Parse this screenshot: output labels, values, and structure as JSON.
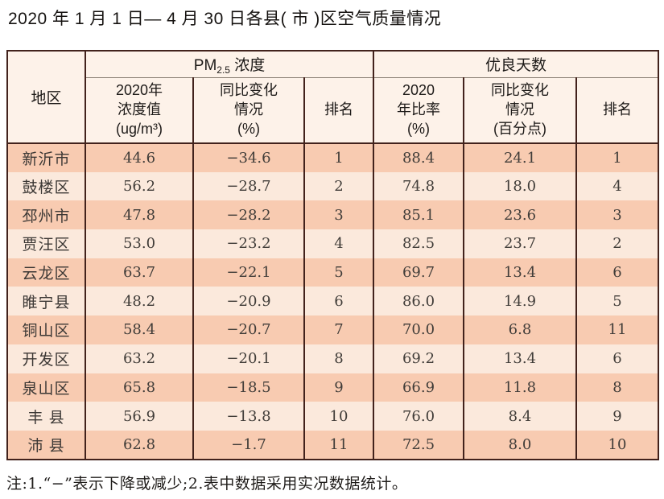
{
  "page": {
    "title": "2020 年 1 月 1 日— 4 月 30 日各县( 市 )区空气质量情况",
    "note": "注:1.“−”表示下降或减少;2.表中数据采用实况数据统计。"
  },
  "colors": {
    "border": "#42221c",
    "row_dark": "#f8cbb1",
    "row_light": "#fbe9dc",
    "header_bg": "#fdf2e9"
  },
  "table": {
    "region_header": "地区",
    "pm_group": {
      "prefix": "PM",
      "sub": "2.5",
      "suffix": " 浓度"
    },
    "good_group": "优良天数",
    "sub_headers": {
      "pm_value": "2020年\n浓度值\n(ug/m³)",
      "pm_change": "同比变化\n情况\n(%)",
      "pm_rank": "排名",
      "good_ratio": "2020\n年比率\n(%)",
      "good_change": "同比变化\n情况\n(百分点)",
      "good_rank": "排名"
    },
    "rows": [
      {
        "region": "新沂市",
        "pm_value": "44.6",
        "pm_change": "−34.6",
        "pm_rank": "1",
        "good_ratio": "88.4",
        "good_change": "24.1",
        "good_rank": "1"
      },
      {
        "region": "鼓楼区",
        "pm_value": "56.2",
        "pm_change": "−28.7",
        "pm_rank": "2",
        "good_ratio": "74.8",
        "good_change": "18.0",
        "good_rank": "4"
      },
      {
        "region": "邳州市",
        "pm_value": "47.8",
        "pm_change": "−28.2",
        "pm_rank": "3",
        "good_ratio": "85.1",
        "good_change": "23.6",
        "good_rank": "3"
      },
      {
        "region": "贾汪区",
        "pm_value": "53.0",
        "pm_change": "−23.2",
        "pm_rank": "4",
        "good_ratio": "82.5",
        "good_change": "23.7",
        "good_rank": "2"
      },
      {
        "region": "云龙区",
        "pm_value": "63.7",
        "pm_change": "−22.1",
        "pm_rank": "5",
        "good_ratio": "69.7",
        "good_change": "13.4",
        "good_rank": "6"
      },
      {
        "region": "睢宁县",
        "pm_value": "48.2",
        "pm_change": "−20.9",
        "pm_rank": "6",
        "good_ratio": "86.0",
        "good_change": "14.9",
        "good_rank": "5"
      },
      {
        "region": "铜山区",
        "pm_value": "58.4",
        "pm_change": "−20.7",
        "pm_rank": "7",
        "good_ratio": "70.0",
        "good_change": "6.8",
        "good_rank": "11"
      },
      {
        "region": "开发区",
        "pm_value": "63.2",
        "pm_change": "−20.1",
        "pm_rank": "8",
        "good_ratio": "69.2",
        "good_change": "13.4",
        "good_rank": "6"
      },
      {
        "region": "泉山区",
        "pm_value": "65.8",
        "pm_change": "−18.5",
        "pm_rank": "9",
        "good_ratio": "66.9",
        "good_change": "11.8",
        "good_rank": "8"
      },
      {
        "region": "丰 县",
        "pm_value": "56.9",
        "pm_change": "−13.8",
        "pm_rank": "10",
        "good_ratio": "76.0",
        "good_change": "8.4",
        "good_rank": "9"
      },
      {
        "region": "沛 县",
        "pm_value": "62.8",
        "pm_change": "−1.7",
        "pm_rank": "11",
        "good_ratio": "72.5",
        "good_change": "8.0",
        "good_rank": "10"
      }
    ]
  }
}
